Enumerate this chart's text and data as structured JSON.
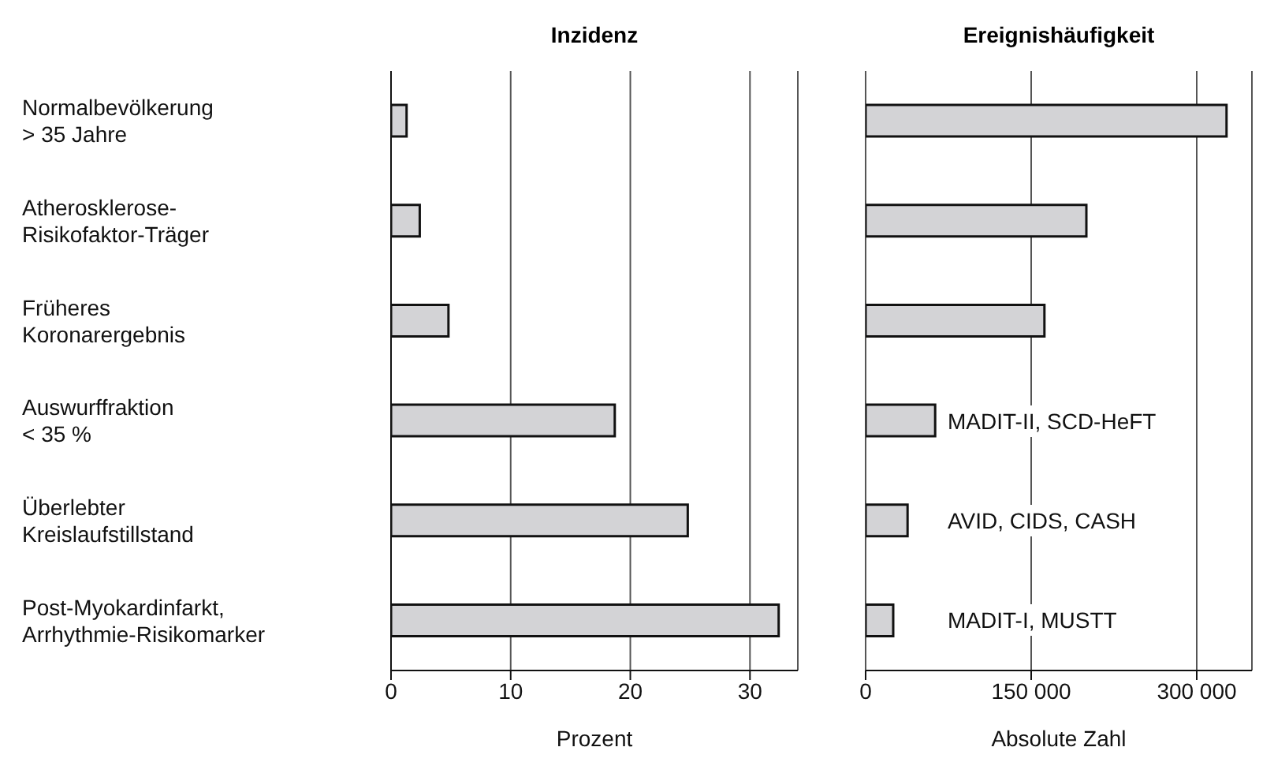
{
  "chart_data": [
    {
      "type": "bar",
      "orientation": "horizontal",
      "title": "Inzidenz",
      "xlabel": "Prozent",
      "categories": [
        "Normalbevölkerung\n> 35 Jahre",
        "Atherosklerose-\nRisikofaktor-Träger",
        "Früheres\nKoronarergebnis",
        "Auswurffraktion\n< 35 %",
        "Überlebter\nKreislaufstillstand",
        "Post-Myokardinfarkt,\nArrhythmie-Risikomarker"
      ],
      "values": [
        1.3,
        2.4,
        4.8,
        18.7,
        24.8,
        32.4
      ],
      "color": "#d3d3d6",
      "xlim": [
        0,
        34
      ],
      "xticks": [
        0,
        10,
        20,
        30
      ],
      "grid": "x"
    },
    {
      "type": "bar",
      "orientation": "horizontal",
      "title": "Ereignishäufigkeit",
      "xlabel": "Absolute Zahl",
      "categories": [
        null,
        null,
        null,
        null,
        null,
        null
      ],
      "values": [
        327000,
        200000,
        162000,
        63000,
        38000,
        25000
      ],
      "color": "#d3d3d6",
      "xlim": [
        0,
        350000
      ],
      "xticks": [
        0,
        {
          "value": 150000,
          "label": "150 000"
        },
        {
          "value": 300000,
          "label": "300 000"
        }
      ],
      "grid": "x",
      "tick_labels": "x",
      "annotations": [
        "MADIT-II, SCD-HeFT",
        "AVID, CIDS, CASH",
        "MADIT-I, MUSTT"
      ]
    }
  ]
}
